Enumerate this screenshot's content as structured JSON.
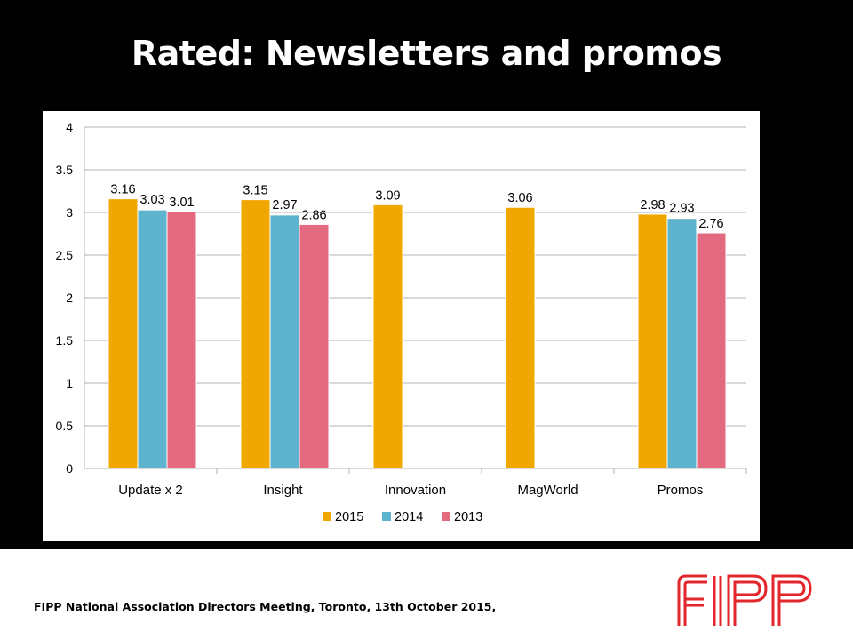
{
  "slide": {
    "title": "Rated: Newsletters and promos",
    "footer": "FIPP National Association Directors Meeting, Toronto, 13th October 2015,",
    "logo_text": "FIPP"
  },
  "colors": {
    "background": "#000000",
    "panel": "#ffffff",
    "grid": "#b3b3b3",
    "logo": "#e3262c"
  },
  "chart_data": {
    "type": "bar",
    "title": "",
    "xlabel": "",
    "ylabel": "",
    "ylim": [
      0,
      4
    ],
    "yticks": [
      "0",
      "0.5",
      "1",
      "1.5",
      "2",
      "2.5",
      "3",
      "3.5",
      "4"
    ],
    "grid": true,
    "legend_position": "bottom",
    "categories": [
      "Update x 2",
      "Insight",
      "Innovation",
      "MagWorld",
      "Promos"
    ],
    "series": [
      {
        "name": "2015",
        "color": "#f0a800",
        "values": [
          3.16,
          3.15,
          3.09,
          3.06,
          2.98
        ],
        "labels": [
          "3.16",
          "3.15",
          "3.09",
          "3.06",
          "2.98"
        ]
      },
      {
        "name": "2014",
        "color": "#5eb3cf",
        "values": [
          3.03,
          2.97,
          null,
          null,
          2.93
        ],
        "labels": [
          "3.03",
          "2.97",
          "",
          "",
          "2.93"
        ]
      },
      {
        "name": "2013",
        "color": "#e46a80",
        "values": [
          3.01,
          2.86,
          null,
          null,
          2.76
        ],
        "labels": [
          "3.01",
          "2.86",
          "",
          "",
          "2.76"
        ]
      }
    ]
  }
}
